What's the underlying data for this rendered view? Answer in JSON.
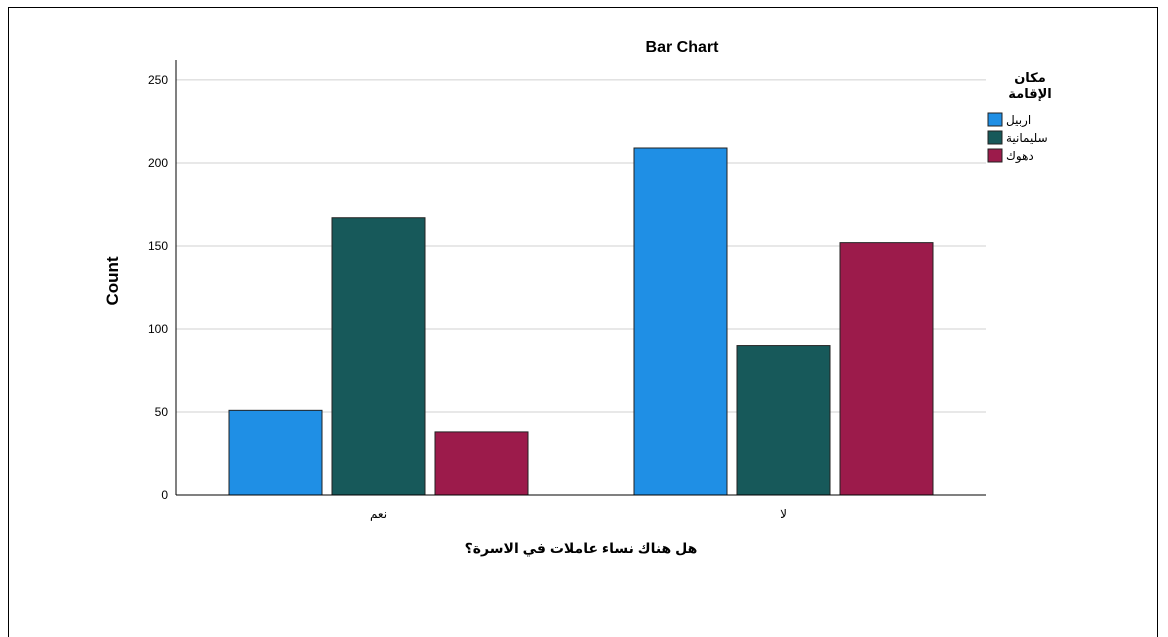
{
  "chart_data": {
    "type": "bar",
    "title": "Bar Chart",
    "xlabel": "هل هناك نساء عاملات في الاسرة؟",
    "ylabel": "Count",
    "categories": [
      "نعم",
      "لا"
    ],
    "series": [
      {
        "name": "اربيل",
        "values": [
          51,
          209
        ],
        "color": "#1f8fe5"
      },
      {
        "name": "سليمانية",
        "values": [
          167,
          90
        ],
        "color": "#17595a"
      },
      {
        "name": "دهوك",
        "values": [
          38,
          152
        ],
        "color": "#9c1b4b"
      }
    ],
    "ylim": [
      0,
      262
    ],
    "yticks": [
      0,
      50,
      100,
      150,
      200,
      250
    ],
    "grid": true,
    "legend": {
      "title_line1": "مكان",
      "title_line2": "الإقامة",
      "placement": "top-right"
    }
  }
}
